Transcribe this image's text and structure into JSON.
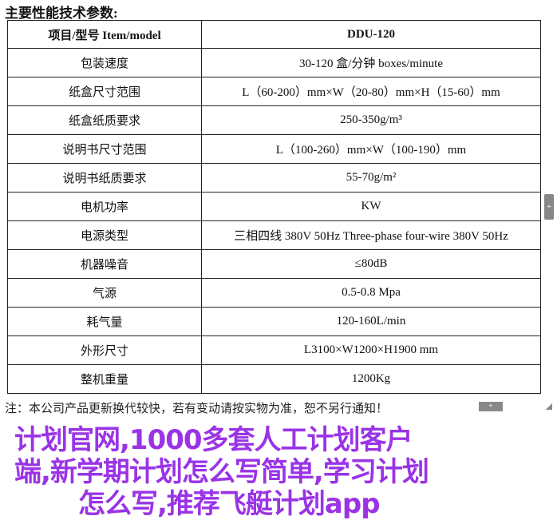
{
  "title": "主要性能技术参数:",
  "table": {
    "header": [
      "项目/型号 Item/model",
      "DDU-120"
    ],
    "rows": [
      [
        "包装速度",
        "30-120 盒/分钟 boxes/minute"
      ],
      [
        "纸盒尺寸范围",
        "L（60-200）mm×W（20-80）mm×H（15-60）mm"
      ],
      [
        "纸盒纸质要求",
        "250-350g/m³"
      ],
      [
        "说明书尺寸范围",
        "L（100-260）mm×W（100-190）mm"
      ],
      [
        "说明书纸质要求",
        "55-70g/m²"
      ],
      [
        "电机功率",
        "KW"
      ],
      [
        "电源类型",
        "三相四线 380V 50Hz Three-phase four-wire 380V 50Hz"
      ],
      [
        "机器噪音",
        "≤80dB"
      ],
      [
        "气源",
        "0.5-0.8 Mpa"
      ],
      [
        "耗气量",
        "120-160L/min"
      ],
      [
        "外形尺寸",
        "L3100×W1200×H1900 mm"
      ],
      [
        "整机重量",
        "1200Kg"
      ]
    ]
  },
  "note": "注：本公司产品更新换代较快，若有变动请按实物为准，恕不另行通知！",
  "overlay": [
    "计划官网,1000多套人工计划客户",
    "端,新学期计划怎么写简单,学习计划",
    "怎么写,推荐飞艇计划app"
  ],
  "buttons": {
    "expand": "+"
  }
}
